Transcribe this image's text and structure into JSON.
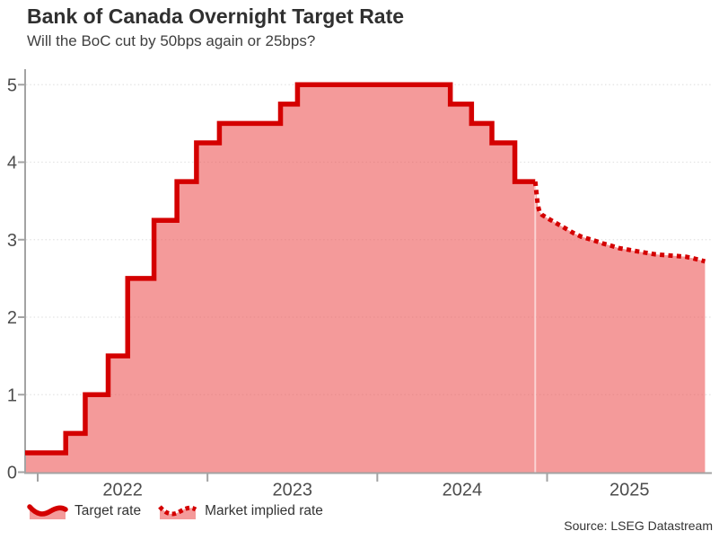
{
  "header": {
    "title": "Bank of Canada Overnight Target Rate",
    "subtitle": "Will the BoC cut by 50bps again or 25bps?"
  },
  "legend": {
    "items": [
      {
        "label": "Target rate",
        "swatch": "solid-wave-icon",
        "line_style": "solid"
      },
      {
        "label": "Market implied rate",
        "swatch": "dotted-wave-icon",
        "line_style": "dotted"
      }
    ]
  },
  "source_note": "Source: LSEG Datastream",
  "colors": {
    "line_red": "#d40000",
    "area_pink": "rgba(237,92,92,0.62)",
    "gridline": "#e3e3e3",
    "axis": "#a3a3a3",
    "tick_label": "#4d4d4d",
    "title_text": "#303030",
    "subtitle_text": "#3f3f3f",
    "seam": "rgba(255,255,255,0.55)"
  },
  "chart_data": {
    "type": "area",
    "title": "Bank of Canada Overnight Target Rate",
    "subtitle": "Will the BoC cut by 50bps again or 25bps?",
    "xlabel": "",
    "ylabel": "",
    "xlim": [
      2021.926,
      2025.97
    ],
    "ylim": [
      0,
      5.2
    ],
    "x_ticks": [
      2022,
      2023,
      2024,
      2025
    ],
    "x_tick_labels": [
      "2022",
      "2023",
      "2024",
      "2025"
    ],
    "y_ticks": [
      0,
      1,
      2,
      3,
      4,
      5
    ],
    "grid": "horizontal-dotted",
    "legend_position": "bottom-left",
    "series": [
      {
        "name": "Target rate",
        "type": "step-area",
        "line_style": "solid",
        "points": [
          [
            2021.926,
            0.25
          ],
          [
            2022.165,
            0.5
          ],
          [
            2022.28,
            1.0
          ],
          [
            2022.415,
            1.5
          ],
          [
            2022.53,
            2.5
          ],
          [
            2022.685,
            3.25
          ],
          [
            2022.82,
            3.75
          ],
          [
            2022.935,
            4.25
          ],
          [
            2023.07,
            4.5
          ],
          [
            2023.43,
            4.75
          ],
          [
            2023.53,
            5.0
          ],
          [
            2024.43,
            4.75
          ],
          [
            2024.555,
            4.5
          ],
          [
            2024.675,
            4.25
          ],
          [
            2024.81,
            3.75
          ],
          [
            2024.93,
            3.75
          ]
        ]
      },
      {
        "name": "Market implied rate",
        "type": "line-area",
        "line_style": "dotted",
        "points": [
          [
            2024.93,
            3.75
          ],
          [
            2024.945,
            3.45
          ],
          [
            2024.955,
            3.36
          ],
          [
            2024.97,
            3.32
          ],
          [
            2025.0,
            3.28
          ],
          [
            2025.04,
            3.23
          ],
          [
            2025.08,
            3.18
          ],
          [
            2025.12,
            3.13
          ],
          [
            2025.16,
            3.08
          ],
          [
            2025.2,
            3.04
          ],
          [
            2025.245,
            3.01
          ],
          [
            2025.29,
            2.98
          ],
          [
            2025.33,
            2.95
          ],
          [
            2025.38,
            2.92
          ],
          [
            2025.425,
            2.89
          ],
          [
            2025.48,
            2.87
          ],
          [
            2025.53,
            2.85
          ],
          [
            2025.585,
            2.83
          ],
          [
            2025.64,
            2.81
          ],
          [
            2025.7,
            2.8
          ],
          [
            2025.76,
            2.79
          ],
          [
            2025.815,
            2.78
          ],
          [
            2025.86,
            2.76
          ],
          [
            2025.93,
            2.72
          ]
        ]
      }
    ]
  }
}
